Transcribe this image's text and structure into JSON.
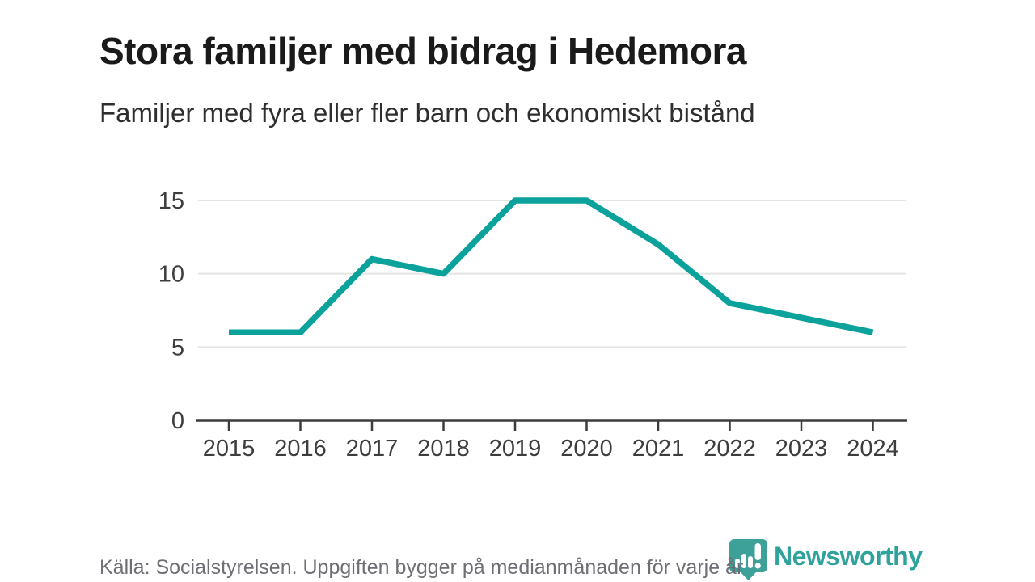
{
  "chart": {
    "title": "Stora familjer med bidrag i Hedemora",
    "subtitle": "Familjer med fyra eller fler barn och ekonomiskt bistånd"
  },
  "chart_data": {
    "type": "line",
    "title": "Stora familjer med bidrag i Hedemora",
    "subtitle": "Familjer med fyra eller fler barn och ekonomiskt bistånd",
    "categories": [
      "2015",
      "2016",
      "2017",
      "2018",
      "2019",
      "2020",
      "2021",
      "2022",
      "2023",
      "2024"
    ],
    "series": [
      {
        "name": "Familjer med fyra eller fler barn och ekonomiskt bistånd",
        "values": [
          6,
          6,
          11,
          10,
          15,
          15,
          12,
          8,
          7,
          6
        ]
      }
    ],
    "xlabel": "",
    "ylabel": "",
    "ylim": [
      0,
      15
    ],
    "yticks": [
      0,
      5,
      10,
      15
    ],
    "grid": true,
    "legend_position": "none",
    "line_color": "#0aa29a"
  },
  "footer": {
    "source": "Källa: Socialstyrelsen. Uppgiften bygger på medianmånaden för varje år",
    "logo_text": "Newsworthy"
  },
  "colors": {
    "line": "#0aa29a",
    "gridline": "#e4e4e4",
    "axis": "#3c3c3c",
    "title_text": "#1a1a1a",
    "footer_text": "#6e6e74",
    "logo_teal": "#3da19a"
  },
  "icons": {
    "logo_icon": "newsworthy-speech-bubble-barchart-icon"
  }
}
